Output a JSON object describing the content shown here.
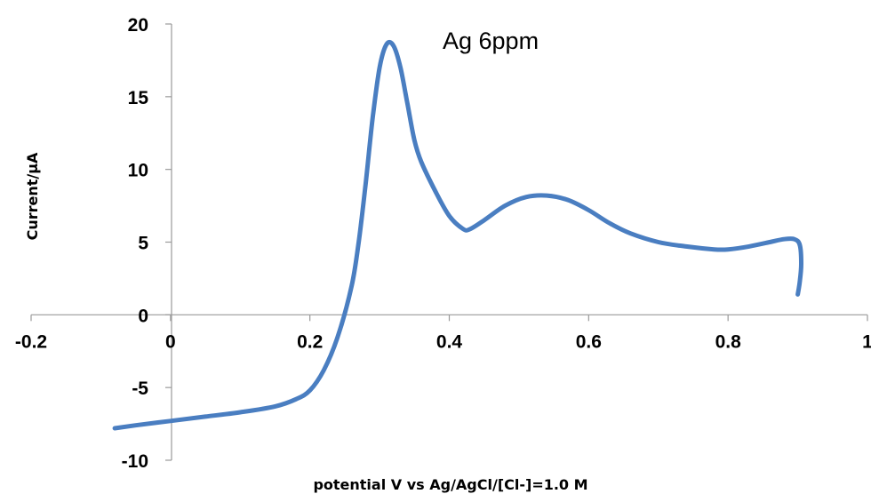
{
  "chart_data": {
    "type": "line",
    "title": "",
    "annotation": "Ag 6ppm",
    "xlabel": "potential V vs Ag/AgCl/[Cl-]=1.0 M",
    "ylabel": "Current/µA",
    "xlim": [
      -0.2,
      1
    ],
    "ylim": [
      -10,
      20
    ],
    "xticks": [
      -0.2,
      0,
      0.2,
      0.4,
      0.6,
      0.8,
      1
    ],
    "xtick_labels": [
      "-0.2",
      "0",
      "0.2",
      "0.4",
      "0.6",
      "0.8",
      "1"
    ],
    "yticks": [
      -10,
      -5,
      0,
      5,
      10,
      15,
      20
    ],
    "ytick_labels": [
      "-10",
      "-5",
      "0",
      "5",
      "10",
      "15",
      "20"
    ],
    "grid": false,
    "legend": "none",
    "series": [
      {
        "color": "#4a7ec1",
        "x": [
          -0.08,
          -0.05,
          0.0,
          0.05,
          0.1,
          0.15,
          0.18,
          0.2,
          0.22,
          0.24,
          0.26,
          0.27,
          0.28,
          0.29,
          0.3,
          0.31,
          0.32,
          0.33,
          0.34,
          0.35,
          0.36,
          0.38,
          0.4,
          0.42,
          0.43,
          0.45,
          0.48,
          0.51,
          0.54,
          0.57,
          0.6,
          0.63,
          0.66,
          0.7,
          0.74,
          0.78,
          0.8,
          0.83,
          0.86,
          0.88,
          0.895,
          0.903,
          0.905,
          0.903,
          0.9
        ],
        "y": [
          -7.8,
          -7.6,
          -7.3,
          -7.0,
          -6.7,
          -6.3,
          -5.8,
          -5.2,
          -3.8,
          -1.5,
          2.0,
          5.0,
          9.0,
          13.5,
          17.0,
          18.6,
          18.5,
          17.0,
          14.5,
          12.0,
          10.5,
          8.5,
          6.8,
          5.9,
          5.9,
          6.5,
          7.5,
          8.1,
          8.2,
          7.9,
          7.2,
          6.3,
          5.6,
          5.0,
          4.7,
          4.5,
          4.5,
          4.7,
          5.0,
          5.2,
          5.2,
          4.8,
          3.5,
          2.3,
          1.4
        ]
      }
    ]
  }
}
